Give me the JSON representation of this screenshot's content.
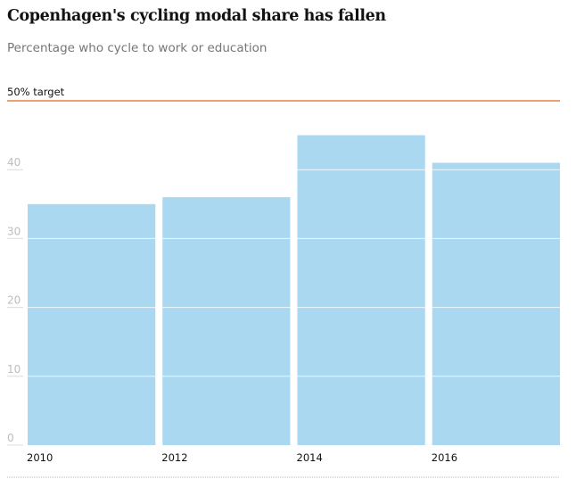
{
  "header": {
    "title": "Copenhagen's cycling modal share has fallen",
    "subtitle": "Percentage who cycle to work or education"
  },
  "chart_data": {
    "type": "bar",
    "title": "Copenhagen's cycling modal share has fallen",
    "subtitle": "Percentage who cycle to work or education",
    "xlabel": "",
    "ylabel": "",
    "categories": [
      "2010",
      "2012",
      "2014",
      "2016"
    ],
    "values": [
      35,
      36,
      45,
      41
    ],
    "ylim": [
      0,
      50
    ],
    "yticks": [
      0,
      10,
      20,
      30,
      40
    ],
    "grid": true,
    "bar_color": "#aad8f0",
    "annotations": [
      {
        "type": "reference-line",
        "value": 50,
        "label": "50% target",
        "color": "#e06a1b"
      }
    ]
  }
}
